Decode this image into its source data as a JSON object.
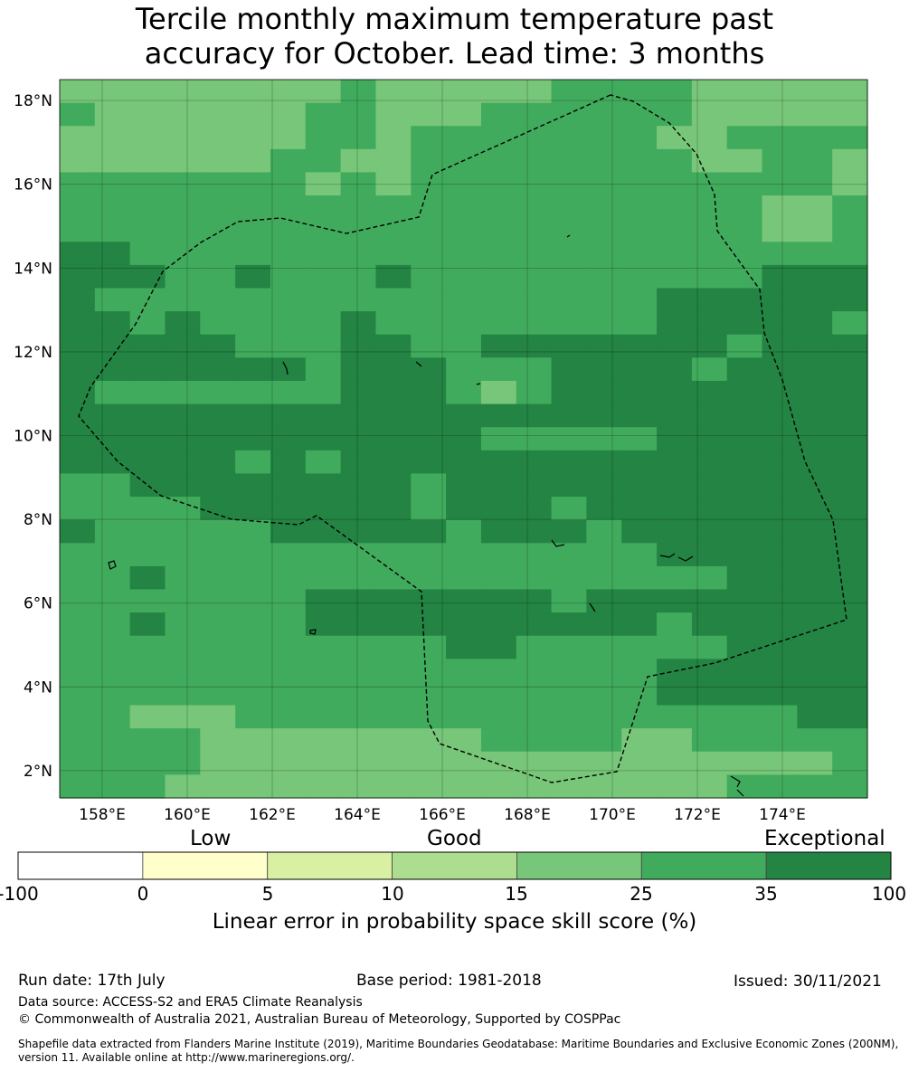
{
  "title_line1": "Tercile monthly maximum temperature past",
  "title_line2": "accuracy for October. Lead time: 3 months",
  "map": {
    "lat_ticks": [
      "2°N",
      "4°N",
      "6°N",
      "8°N",
      "10°N",
      "12°N",
      "14°N",
      "16°N",
      "18°N"
    ],
    "lon_ticks": [
      "158°E",
      "160°E",
      "162°E",
      "164°E",
      "166°E",
      "168°E",
      "170°E",
      "172°E",
      "174°E"
    ],
    "lon_range": [
      157.0,
      176.0
    ],
    "lat_range": [
      1.35,
      18.5
    ],
    "grid": true,
    "boundary_style": "dashed"
  },
  "colorbar": {
    "category_labels": {
      "low": "Low",
      "good": "Good",
      "exceptional": "Exceptional"
    },
    "ticks": [
      "-100",
      "0",
      "5",
      "10",
      "15",
      "25",
      "35",
      "100"
    ],
    "colors": [
      "#ffffff",
      "#ffffcc",
      "#d9f0a3",
      "#addd8e",
      "#78c679",
      "#41ab5d",
      "#238443"
    ],
    "label": "Linear error in probability space skill score (%)"
  },
  "footer": {
    "run_date": "Run date: 17th July",
    "base_period": "Base period: 1981-2018",
    "issued": "Issued: 30/11/2021",
    "data_source": "Data source: ACCESS-S2 and ERA5 Climate Reanalysis",
    "copyright": "© Commonwealth of Australia 2021, Australian Bureau of Meteorology, Supported by COSPPac",
    "shapefile_line1": "Shapefile data extracted from Flanders Marine Institute (2019), Maritime Boundaries Geodatabase: Maritime Boundaries and Exclusive Economic Zones (200NM),",
    "shapefile_line2": "version 11. Available online at http://www.marineregions.org/."
  }
}
